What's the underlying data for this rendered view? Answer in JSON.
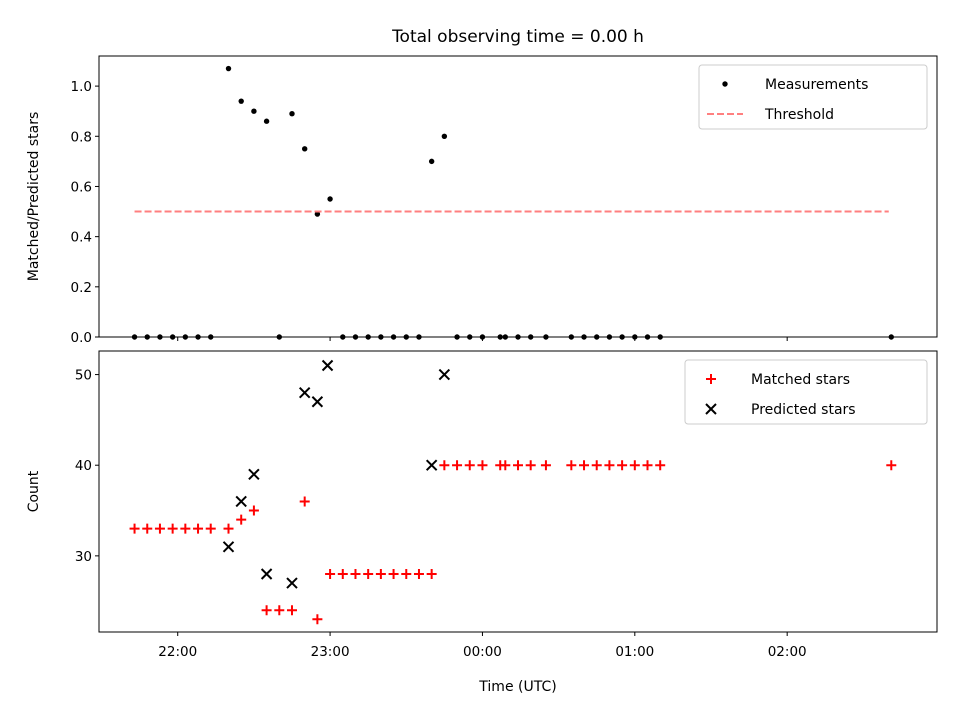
{
  "chart_data": [
    {
      "type": "scatter",
      "title": "Total observing time = 0.00 h",
      "xlabel": "",
      "ylabel": "Matched/Predicted stars",
      "ylim": [
        0,
        1.12
      ],
      "xlim": [
        "21:29",
        "02:59"
      ],
      "yticks": [
        "0.0",
        "0.2",
        "0.4",
        "0.6",
        "0.8",
        "1.0"
      ],
      "legend_position": "top-right",
      "series": [
        {
          "name": "Measurements",
          "kind": "points",
          "color": "#000000",
          "x": [
            "21:43",
            "21:48",
            "21:53",
            "21:58",
            "22:03",
            "22:08",
            "22:13",
            "22:20",
            "22:25",
            "22:30",
            "22:35",
            "22:40",
            "22:45",
            "22:50",
            "22:55",
            "23:00",
            "23:05",
            "23:10",
            "23:15",
            "23:20",
            "23:25",
            "23:30",
            "23:35",
            "23:40",
            "23:45",
            "23:50",
            "23:55",
            "00:00",
            "00:07",
            "00:09",
            "00:14",
            "00:19",
            "00:25",
            "00:35",
            "00:40",
            "00:45",
            "00:50",
            "00:55",
            "01:00",
            "01:05",
            "01:10",
            "02:41"
          ],
          "y": [
            0,
            0,
            0,
            0,
            0,
            0,
            0,
            1.07,
            0.94,
            0.9,
            0.86,
            0,
            0.89,
            0.75,
            0.49,
            0.55,
            0,
            0,
            0,
            0,
            0,
            0,
            0,
            0.7,
            0.8,
            0,
            0,
            0,
            0,
            0,
            0,
            0,
            0,
            0,
            0,
            0,
            0,
            0,
            0,
            0,
            0,
            0
          ]
        },
        {
          "name": "Threshold",
          "kind": "dashed-line",
          "color": "#ff7f7f",
          "x": [
            "21:43",
            "02:40"
          ],
          "y": [
            0.5,
            0.5
          ]
        }
      ]
    },
    {
      "type": "scatter",
      "title": "",
      "xlabel": "Time (UTC)",
      "ylabel": "Count",
      "ylim": [
        21.6,
        52.6
      ],
      "xlim": [
        "21:29",
        "02:59"
      ],
      "yticks": [
        "30",
        "40",
        "50"
      ],
      "xticks": [
        "22:00",
        "23:00",
        "00:00",
        "01:00",
        "02:00"
      ],
      "legend_position": "top-right",
      "series": [
        {
          "name": "Matched stars",
          "kind": "plus",
          "color": "#ff0000",
          "x": [
            "21:43",
            "21:48",
            "21:53",
            "21:58",
            "22:03",
            "22:08",
            "22:13",
            "22:20",
            "22:25",
            "22:30",
            "22:35",
            "22:40",
            "22:45",
            "22:50",
            "22:55",
            "23:00",
            "23:05",
            "23:10",
            "23:15",
            "23:20",
            "23:25",
            "23:30",
            "23:35",
            "23:40",
            "23:45",
            "23:50",
            "23:55",
            "00:00",
            "00:07",
            "00:09",
            "00:14",
            "00:19",
            "00:25",
            "00:35",
            "00:40",
            "00:45",
            "00:50",
            "00:55",
            "01:00",
            "01:05",
            "01:10",
            "02:41"
          ],
          "y": [
            33,
            33,
            33,
            33,
            33,
            33,
            33,
            33,
            34,
            35,
            24,
            24,
            24,
            36,
            23,
            28,
            28,
            28,
            28,
            28,
            28,
            28,
            28,
            28,
            40,
            40,
            40,
            40,
            40,
            40,
            40,
            40,
            40,
            40,
            40,
            40,
            40,
            40,
            40,
            40,
            40,
            40
          ]
        },
        {
          "name": "Predicted stars",
          "kind": "cross",
          "color": "#000000",
          "x": [
            "22:20",
            "22:25",
            "22:30",
            "22:35",
            "22:45",
            "22:50",
            "22:55",
            "22:59",
            "23:40",
            "23:45"
          ],
          "y": [
            31,
            36,
            39,
            28,
            27,
            48,
            47,
            51,
            40,
            50
          ]
        }
      ]
    }
  ]
}
